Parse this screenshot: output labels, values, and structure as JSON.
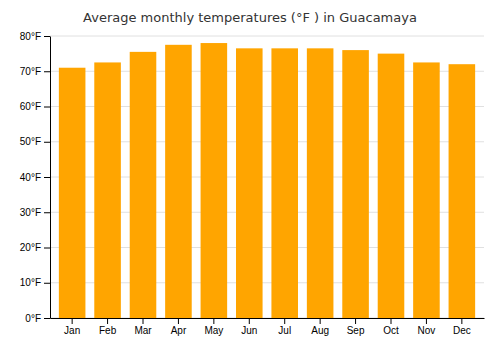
{
  "chart_data": {
    "type": "bar",
    "title": "Average monthly temperatures (°F ) in Guacamaya",
    "categories": [
      "Jan",
      "Feb",
      "Mar",
      "Apr",
      "May",
      "Jun",
      "Jul",
      "Aug",
      "Sep",
      "Oct",
      "Nov",
      "Dec"
    ],
    "values": [
      71,
      72.5,
      75.5,
      77.5,
      78,
      76.5,
      76.5,
      76.5,
      76,
      75,
      72.5,
      72
    ],
    "color": "#FFA500",
    "ylim": [
      0,
      80
    ],
    "yticks": [
      {
        "value": 0,
        "label": "0°F"
      },
      {
        "value": 10,
        "label": "10°F"
      },
      {
        "value": 20,
        "label": "20°F"
      },
      {
        "value": 30,
        "label": "30°F"
      },
      {
        "value": 40,
        "label": "40°F"
      },
      {
        "value": 50,
        "label": "50°F"
      },
      {
        "value": 60,
        "label": "60°F"
      },
      {
        "value": 70,
        "label": "70°F"
      },
      {
        "value": 80,
        "label": "80°F"
      }
    ],
    "grid": true
  }
}
